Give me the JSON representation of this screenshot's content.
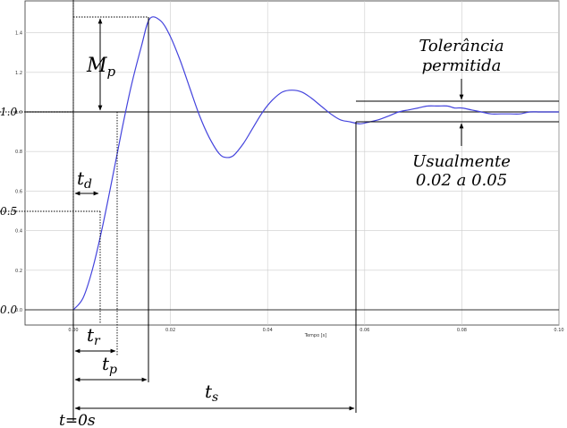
{
  "chart_data": {
    "type": "line",
    "xlabel": "Tempo [s]",
    "ylabel": "",
    "xlim": [
      -0.01,
      0.1
    ],
    "ylim": [
      -0.08,
      1.56
    ],
    "grid": true,
    "x_ticks": [
      "0.00",
      "0.02",
      "0.04",
      "0.06",
      "0.08",
      "0.10"
    ],
    "y_ticks": [
      "0.0",
      "0.2",
      "0.4",
      "0.6",
      "0.8",
      "1.0",
      "1.2",
      "1.4"
    ],
    "series": [
      {
        "x": [
          0,
          0.002,
          0.004,
          0.006,
          0.008,
          0.01,
          0.012,
          0.014,
          0.0157,
          0.018,
          0.02,
          0.022,
          0.024,
          0.026,
          0.028,
          0.03,
          0.0314,
          0.033,
          0.035,
          0.037,
          0.039,
          0.041,
          0.043,
          0.045,
          0.0471,
          0.049,
          0.051,
          0.053,
          0.055,
          0.057,
          0.059,
          0.061,
          0.0628,
          0.065,
          0.067,
          0.069,
          0.071,
          0.073,
          0.075,
          0.077,
          0.0785,
          0.08,
          0.082,
          0.084,
          0.086,
          0.088,
          0.09,
          0.092,
          0.094,
          0.096,
          0.098,
          0.1
        ],
        "values": [
          0,
          0.06,
          0.21,
          0.42,
          0.66,
          0.91,
          1.14,
          1.33,
          1.47,
          1.46,
          1.38,
          1.26,
          1.12,
          0.98,
          0.87,
          0.79,
          0.77,
          0.78,
          0.84,
          0.92,
          1.0,
          1.06,
          1.1,
          1.11,
          1.1,
          1.07,
          1.03,
          0.99,
          0.96,
          0.95,
          0.94,
          0.95,
          0.96,
          0.98,
          1.0,
          1.01,
          1.02,
          1.03,
          1.03,
          1.03,
          1.02,
          1.02,
          1.01,
          1.0,
          0.99,
          0.99,
          0.99,
          0.99,
          1.0,
          1.0,
          1.0,
          1.0
        ]
      }
    ]
  },
  "levels": {
    "zero": "0.0",
    "half": "0.5",
    "one": "1.0"
  },
  "annotations": {
    "mp": "M",
    "mp_sub": "p",
    "td": "t",
    "td_sub": "d",
    "tr": "t",
    "tr_sub": "r",
    "tp": "t",
    "tp_sub": "p",
    "ts": "t",
    "ts_sub": "s",
    "t0": "t=0s",
    "tolerance_line1": "Tolerância",
    "tolerance_line2": "permitida",
    "usual_line1": "Usualmente",
    "usual_line2": "0.02  a  0.05"
  },
  "colors": {
    "response": "#4444dd",
    "axes": "#333333",
    "grid": "#cccccc",
    "annotation": "#000000"
  }
}
